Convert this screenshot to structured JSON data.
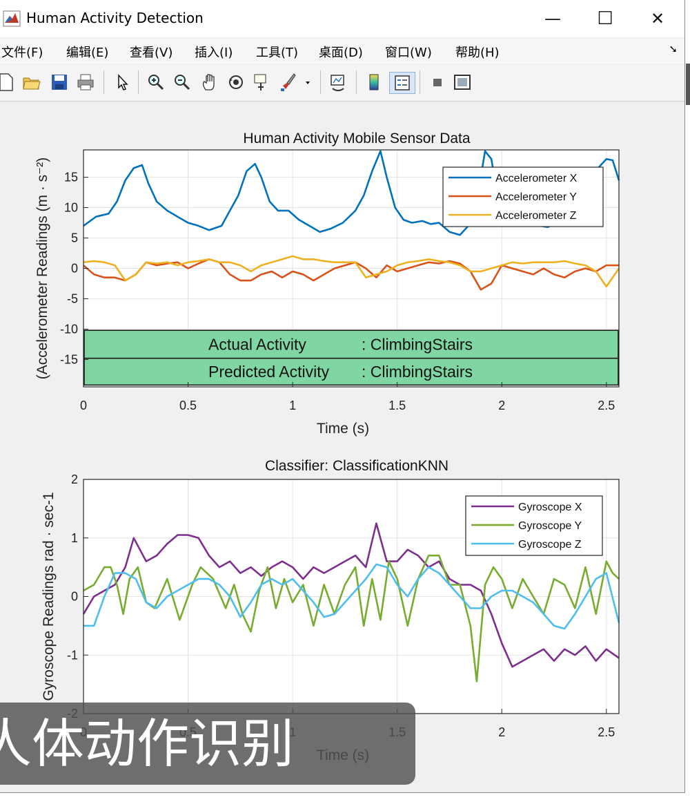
{
  "window": {
    "title": "Human Activity Detection",
    "minimize": "—",
    "maximize": "☐",
    "close": "✕"
  },
  "menu": [
    "文件(F)",
    "编辑(E)",
    "查看(V)",
    "插入(I)",
    "工具(T)",
    "桌面(D)",
    "窗口(W)",
    "帮助(H)"
  ],
  "menu_overflow_icon": "arrow-down-right-icon",
  "toolbar_icons": [
    "new-file-icon",
    "open-folder-icon",
    "save-icon",
    "print-icon",
    "select-arrow-icon",
    "zoom-in-icon",
    "zoom-out-icon",
    "pan-hand-icon",
    "rotate-3d-icon",
    "data-cursor-icon",
    "brush-icon",
    "dropdown-arrow-icon",
    "link-plot-icon",
    "colorbar-icon",
    "legend-icon",
    "hide-plot-tools-icon",
    "show-plot-tools-icon"
  ],
  "colors": {
    "accel_x": "#0072BD",
    "accel_y": "#D95319",
    "accel_z": "#EDB120",
    "gyro_x": "#7E2F8E",
    "gyro_y": "#77AC30",
    "gyro_z": "#4DBEEE",
    "activity_box": "#7fd6a2"
  },
  "caption": "人体动作识别",
  "chart_data": [
    {
      "type": "line",
      "title": "Human Activity Mobile Sensor Data",
      "xlabel": "Time (s)",
      "ylabel": "(Accelerometer Readings (m · s⁻²)",
      "xlim": [
        0,
        2.56
      ],
      "ylim": [
        -19.5,
        19.5
      ],
      "xticks": [
        0,
        0.5,
        1,
        1.5,
        2,
        2.5
      ],
      "yticks": [
        -15,
        -10,
        -5,
        0,
        5,
        10,
        15
      ],
      "grid": true,
      "legend_position": "top-right",
      "series": [
        {
          "name": "Accelerometer X",
          "x": [
            0,
            0.06,
            0.12,
            0.16,
            0.2,
            0.24,
            0.28,
            0.31,
            0.35,
            0.4,
            0.45,
            0.5,
            0.55,
            0.6,
            0.66,
            0.7,
            0.74,
            0.78,
            0.82,
            0.85,
            0.89,
            0.93,
            0.98,
            1.03,
            1.08,
            1.13,
            1.18,
            1.24,
            1.3,
            1.34,
            1.38,
            1.42,
            1.45,
            1.49,
            1.53,
            1.57,
            1.62,
            1.66,
            1.7,
            1.75,
            1.8,
            1.84,
            1.88,
            1.92,
            1.95,
            1.98,
            2.02,
            2.06,
            2.1,
            2.14,
            2.18,
            2.22,
            2.26,
            2.3,
            2.34,
            2.38,
            2.42,
            2.46,
            2.5,
            2.53,
            2.56
          ],
          "values": [
            7,
            8.5,
            9,
            11,
            14.5,
            16.5,
            17,
            14,
            11,
            9.5,
            8.5,
            7.5,
            7,
            6.3,
            7,
            9.5,
            12,
            16,
            17.2,
            15,
            11,
            9.5,
            9.5,
            8,
            7,
            6,
            6.5,
            7.5,
            9.5,
            12,
            16,
            19.3,
            15,
            10,
            8,
            7.5,
            7.8,
            7.3,
            7.5,
            6,
            5.5,
            7,
            11,
            19.3,
            18,
            12,
            10,
            9,
            8,
            7.5,
            7,
            6.8,
            7.5,
            9,
            11,
            13,
            15,
            16.5,
            18,
            17.8,
            14.5
          ]
        },
        {
          "name": "Accelerometer Y",
          "x": [
            0,
            0.05,
            0.1,
            0.15,
            0.2,
            0.25,
            0.3,
            0.35,
            0.4,
            0.45,
            0.5,
            0.55,
            0.6,
            0.65,
            0.7,
            0.75,
            0.8,
            0.85,
            0.9,
            0.95,
            1,
            1.05,
            1.1,
            1.15,
            1.2,
            1.25,
            1.3,
            1.35,
            1.4,
            1.45,
            1.5,
            1.55,
            1.6,
            1.65,
            1.7,
            1.75,
            1.8,
            1.85,
            1.9,
            1.95,
            2,
            2.05,
            2.1,
            2.15,
            2.2,
            2.25,
            2.3,
            2.35,
            2.4,
            2.45,
            2.5,
            2.56
          ],
          "values": [
            0.5,
            -1,
            -1.5,
            -1.5,
            -2,
            -1,
            1,
            0.5,
            0.8,
            1,
            0,
            0.8,
            1.5,
            1,
            -1,
            -2,
            -2,
            -1,
            -0.5,
            -1.5,
            -0.5,
            -1,
            -2,
            -1,
            0,
            0.5,
            1,
            0,
            -1.5,
            0.5,
            -0.5,
            0,
            0.5,
            1,
            0.8,
            1.2,
            0.8,
            -0.5,
            -3.5,
            -2.5,
            0.5,
            0,
            -0.5,
            -1,
            0,
            -1,
            -1.5,
            -0.5,
            0,
            -0.5,
            0.5,
            0.5
          ]
        },
        {
          "name": "Accelerometer Z",
          "x": [
            0,
            0.05,
            0.1,
            0.15,
            0.2,
            0.25,
            0.3,
            0.35,
            0.4,
            0.45,
            0.5,
            0.55,
            0.6,
            0.65,
            0.7,
            0.75,
            0.8,
            0.85,
            0.9,
            0.95,
            1,
            1.05,
            1.1,
            1.15,
            1.2,
            1.25,
            1.3,
            1.35,
            1.4,
            1.45,
            1.5,
            1.55,
            1.6,
            1.65,
            1.7,
            1.75,
            1.8,
            1.85,
            1.9,
            1.95,
            2,
            2.05,
            2.1,
            2.15,
            2.2,
            2.25,
            2.3,
            2.35,
            2.4,
            2.45,
            2.5,
            2.56
          ],
          "values": [
            1,
            1.2,
            1,
            0.5,
            -2,
            -1,
            1,
            0.8,
            1,
            0.5,
            1,
            1.2,
            1.5,
            1,
            1,
            0.5,
            -0.5,
            0.5,
            1,
            1.5,
            2,
            1.5,
            1.5,
            1.2,
            1,
            1,
            1,
            -1.5,
            -1,
            -0.5,
            0.5,
            1,
            1.2,
            1.5,
            1.2,
            1,
            0.5,
            -0.5,
            -0.5,
            0,
            0.5,
            1,
            0.8,
            1,
            1,
            1,
            1.2,
            0.8,
            0.5,
            -0.5,
            -3,
            0
          ]
        }
      ],
      "annotation_rows": [
        {
          "label": "Actual Activity",
          "value": ": ClimbingStairs"
        },
        {
          "label": "Predicted Activity",
          "value": ": ClimbingStairs"
        }
      ]
    },
    {
      "type": "line",
      "title": "Classifier: ClassificationKNN",
      "xlabel": "Time (s)",
      "ylabel": "Gyroscope Readings rad · sec-1",
      "xlim": [
        0,
        2.56
      ],
      "ylim": [
        -2,
        2
      ],
      "xticks": [
        0,
        0.5,
        1,
        1.5,
        2,
        2.5
      ],
      "yticks": [
        -2,
        -1,
        0,
        1,
        2
      ],
      "grid": true,
      "legend_position": "top-right",
      "series": [
        {
          "name": "Gyroscope X",
          "x": [
            0,
            0.05,
            0.1,
            0.15,
            0.2,
            0.24,
            0.27,
            0.3,
            0.35,
            0.4,
            0.45,
            0.5,
            0.55,
            0.6,
            0.65,
            0.7,
            0.75,
            0.8,
            0.85,
            0.9,
            0.95,
            1,
            1.05,
            1.1,
            1.15,
            1.2,
            1.25,
            1.3,
            1.35,
            1.4,
            1.45,
            1.5,
            1.55,
            1.6,
            1.65,
            1.7,
            1.75,
            1.8,
            1.85,
            1.9,
            1.95,
            2,
            2.05,
            2.1,
            2.15,
            2.2,
            2.25,
            2.3,
            2.35,
            2.4,
            2.45,
            2.5,
            2.56
          ],
          "values": [
            -0.3,
            0,
            0.1,
            0.2,
            0.5,
            1,
            0.8,
            0.6,
            0.7,
            0.9,
            1.05,
            1.05,
            1.0,
            0.7,
            0.5,
            0.6,
            0.4,
            0.5,
            0.35,
            0.5,
            0.6,
            0.5,
            0.3,
            0.5,
            0.4,
            0.5,
            0.6,
            0.7,
            0.5,
            1.25,
            0.6,
            0.6,
            0.8,
            0.7,
            0.5,
            0.6,
            0.3,
            0.2,
            0.2,
            0.1,
            -0.3,
            -0.8,
            -1.2,
            -1.1,
            -1.0,
            -0.9,
            -1.1,
            -0.9,
            -1.0,
            -0.85,
            -1.1,
            -0.9,
            -1.05
          ]
        },
        {
          "name": "Gyroscope Y",
          "x": [
            0,
            0.05,
            0.1,
            0.13,
            0.16,
            0.19,
            0.22,
            0.26,
            0.3,
            0.34,
            0.4,
            0.46,
            0.52,
            0.56,
            0.62,
            0.68,
            0.72,
            0.76,
            0.8,
            0.84,
            0.88,
            0.92,
            0.96,
            1.0,
            1.05,
            1.1,
            1.15,
            1.2,
            1.25,
            1.3,
            1.34,
            1.38,
            1.42,
            1.46,
            1.5,
            1.55,
            1.6,
            1.65,
            1.7,
            1.75,
            1.8,
            1.85,
            1.88,
            1.92,
            1.96,
            2.0,
            2.05,
            2.1,
            2.15,
            2.2,
            2.25,
            2.3,
            2.35,
            2.4,
            2.45,
            2.5,
            2.53,
            2.56
          ],
          "values": [
            0.1,
            0.2,
            0.5,
            0.5,
            0.2,
            -0.3,
            0.3,
            0.5,
            -0.1,
            -0.2,
            0.3,
            -0.4,
            0.2,
            0.5,
            0.3,
            -0.2,
            0.2,
            -0.3,
            -0.6,
            0.1,
            0.5,
            -0.2,
            0.3,
            -0.1,
            0.2,
            -0.5,
            0.2,
            -0.3,
            0.2,
            0.5,
            -0.5,
            0.3,
            -0.4,
            0.6,
            0.3,
            -0.5,
            0.3,
            0.7,
            0.7,
            0.2,
            0.2,
            -0.5,
            -1.45,
            0.2,
            0.5,
            0.3,
            -0.2,
            0.3,
            0,
            -0.3,
            0.3,
            0.2,
            -0.2,
            0.5,
            -0.3,
            0.6,
            0.4,
            0.3
          ]
        },
        {
          "name": "Gyroscope Z",
          "x": [
            0,
            0.05,
            0.1,
            0.15,
            0.2,
            0.25,
            0.3,
            0.35,
            0.4,
            0.45,
            0.5,
            0.55,
            0.6,
            0.65,
            0.7,
            0.75,
            0.8,
            0.85,
            0.9,
            0.95,
            1,
            1.05,
            1.1,
            1.15,
            1.2,
            1.25,
            1.3,
            1.35,
            1.4,
            1.45,
            1.5,
            1.55,
            1.6,
            1.65,
            1.7,
            1.75,
            1.8,
            1.85,
            1.9,
            1.95,
            2,
            2.05,
            2.1,
            2.15,
            2.2,
            2.25,
            2.3,
            2.35,
            2.4,
            2.45,
            2.5,
            2.56
          ],
          "values": [
            -0.5,
            -0.5,
            0,
            0.4,
            0.4,
            0.3,
            -0.1,
            -0.2,
            0,
            0.1,
            0.2,
            0.3,
            0.3,
            0.2,
            0,
            -0.35,
            -0.1,
            0.2,
            0.3,
            0.2,
            0.3,
            0.1,
            -0.1,
            -0.35,
            -0.3,
            -0.1,
            0.1,
            0.3,
            0.55,
            0.5,
            0.2,
            0,
            0.3,
            0.5,
            0.4,
            0.2,
            0,
            -0.2,
            -0.2,
            0,
            0.1,
            0.1,
            0,
            -0.1,
            -0.3,
            -0.5,
            -0.55,
            -0.3,
            0,
            0.3,
            0.4,
            -0.45
          ]
        }
      ]
    }
  ]
}
